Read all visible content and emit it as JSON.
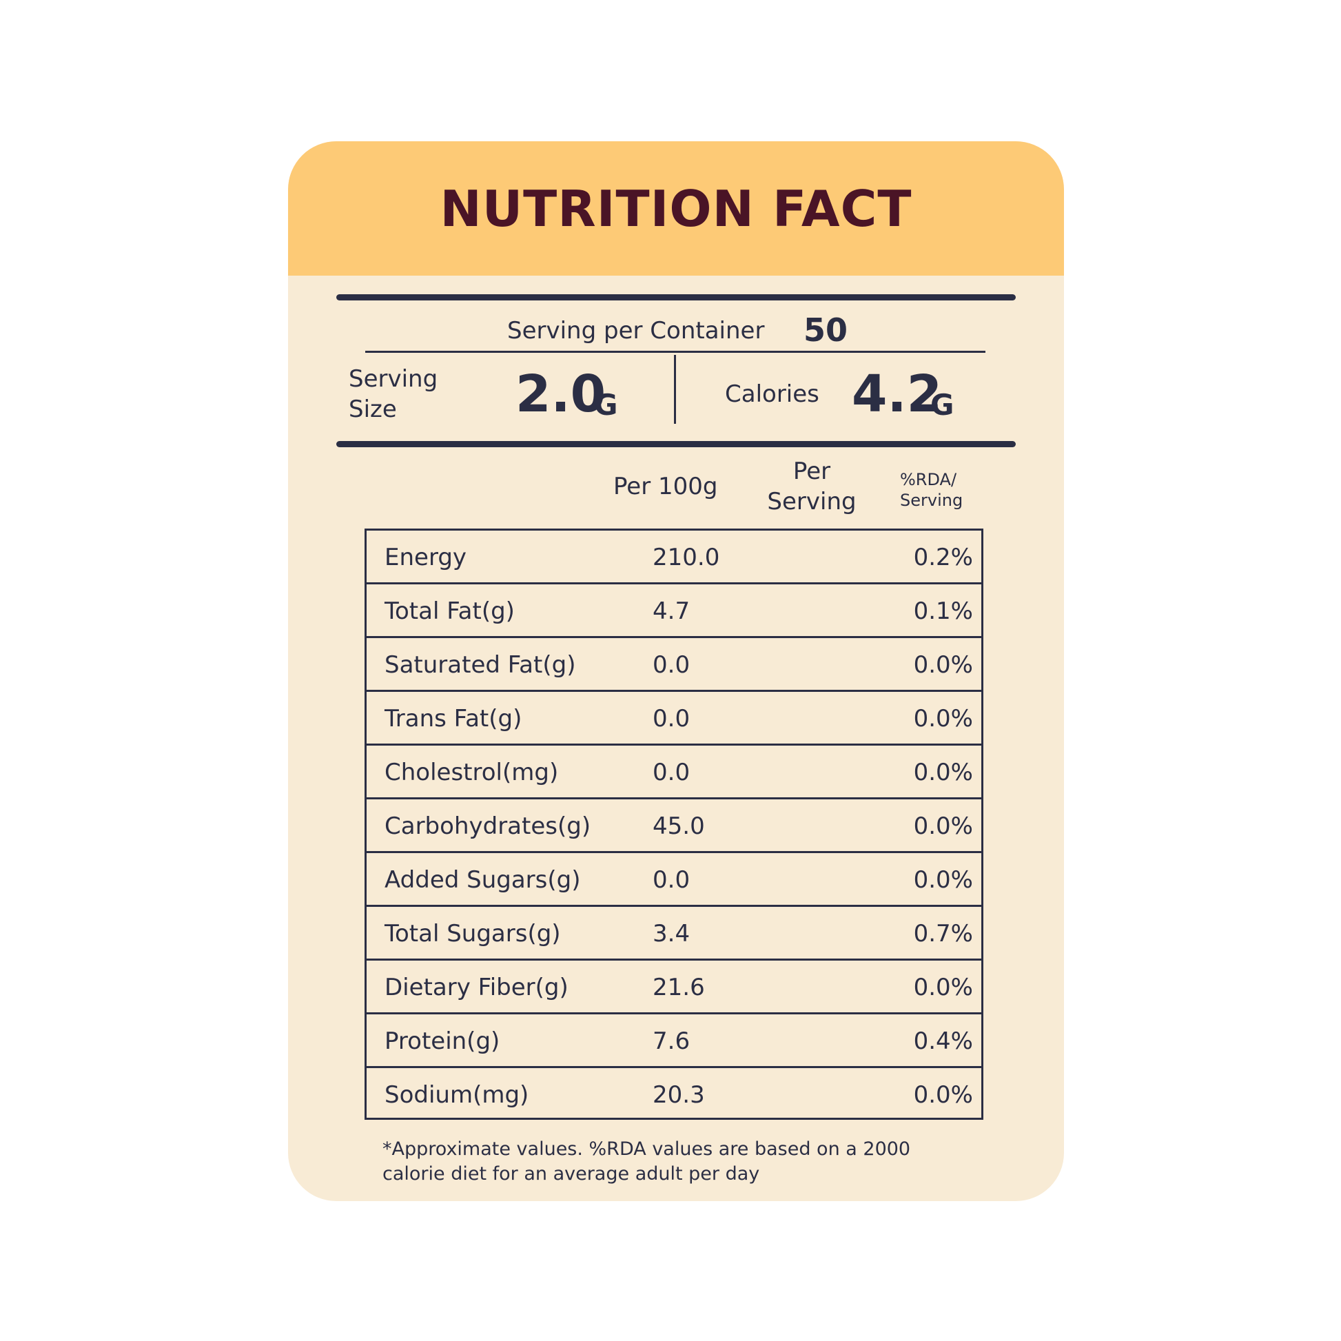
{
  "title": "NUTRITION FACT",
  "servings": {
    "label": "Serving per Container",
    "value": "50"
  },
  "serving_size": {
    "label_line1": "Serving",
    "label_line2": "Size",
    "value": "2.0",
    "unit": "G"
  },
  "calories": {
    "label": "Calories",
    "value": "4.2",
    "unit": "G"
  },
  "columns": {
    "per100": "Per 100g",
    "per_serving_line1": "Per",
    "per_serving_line2": "Serving",
    "rda_line1": "%RDA/",
    "rda_line2": "Serving"
  },
  "rows": [
    {
      "name": "Energy",
      "per100": "210.0",
      "rda": "0.2%"
    },
    {
      "name": "Total Fat(g)",
      "per100": "4.7",
      "rda": "0.1%"
    },
    {
      "name": "Saturated Fat(g)",
      "per100": "0.0",
      "rda": "0.0%"
    },
    {
      "name": "Trans Fat(g)",
      "per100": "0.0",
      "rda": "0.0%"
    },
    {
      "name": "Cholestrol(mg)",
      "per100": "0.0",
      "rda": "0.0%"
    },
    {
      "name": "Carbohydrates(g)",
      "per100": "45.0",
      "rda": "0.0%"
    },
    {
      "name": "Added Sugars(g)",
      "per100": "0.0",
      "rda": "0.0%"
    },
    {
      "name": "Total Sugars(g)",
      "per100": "3.4",
      "rda": "0.7%"
    },
    {
      "name": "Dietary Fiber(g)",
      "per100": "21.6",
      "rda": "0.0%"
    },
    {
      "name": "Protein(g)",
      "per100": "7.6",
      "rda": "0.4%"
    },
    {
      "name": "Sodium(mg)",
      "per100": "20.3",
      "rda": "0.0%"
    }
  ],
  "footnote": {
    "line1": "*Approximate values. %RDA values are based on a 2000",
    "line2": "calorie diet for an average adult per day"
  },
  "colors": {
    "header_bg": "#fdca76",
    "card_bg": "#f8ebd5",
    "title": "#4a1426",
    "text": "#2b2e44"
  }
}
